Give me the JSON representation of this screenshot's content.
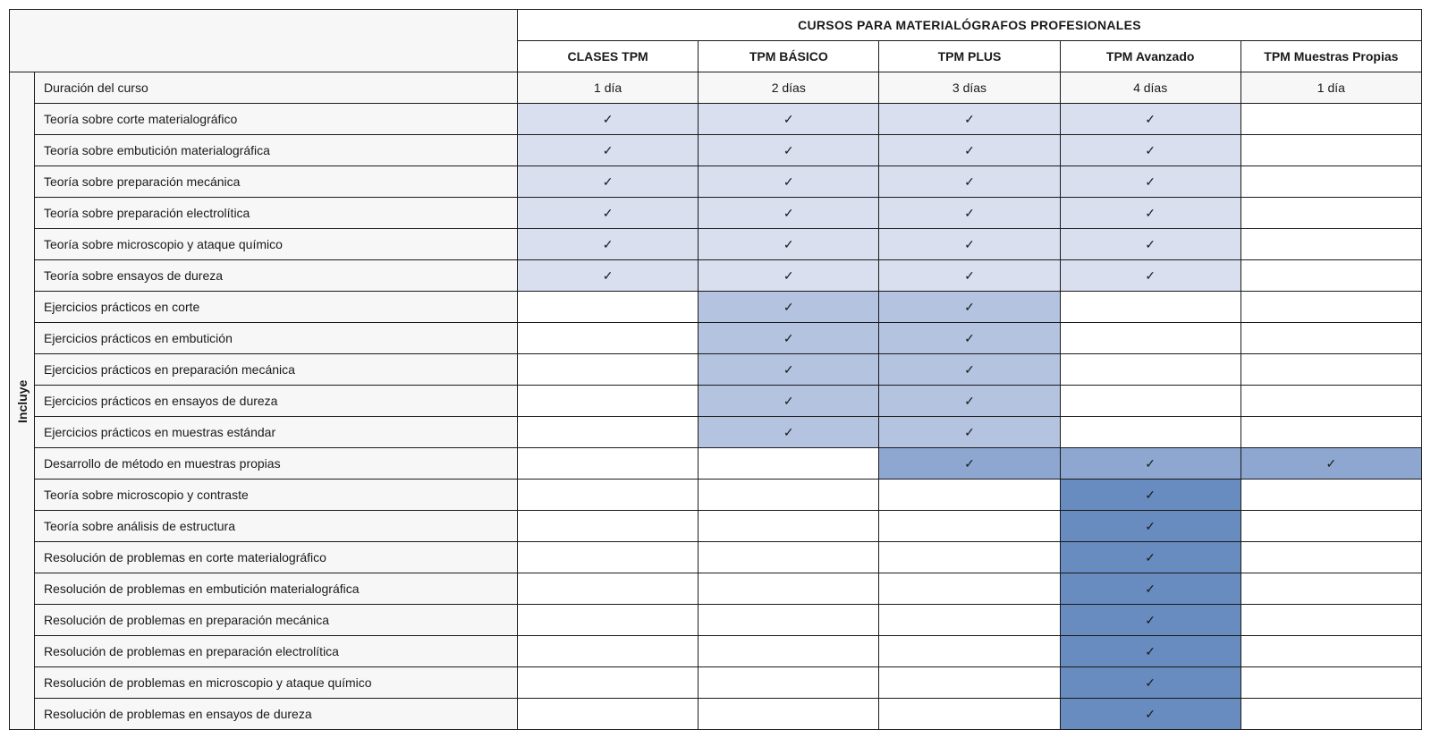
{
  "table": {
    "mainHeader": "CURSOS PARA MATERIALÓGRAFOS PROFESIONALES",
    "sideLabel": "Incluye",
    "checkmark": "✓",
    "colors": {
      "shade1": "#dadff0",
      "shade2": "#b4c3e0",
      "shade3": "#8ea7d0",
      "shade4": "#688bc0",
      "rowAlt": "#f7f7f7"
    },
    "courses": [
      {
        "name": "CLASES TPM",
        "duration": "1 día"
      },
      {
        "name": "TPM BÁSICO",
        "duration": "2 días"
      },
      {
        "name": "TPM PLUS",
        "duration": "3 días"
      },
      {
        "name": "TPM Avanzado",
        "duration": "4 días"
      },
      {
        "name": "TPM Muestras Propias",
        "duration": "1 día"
      }
    ],
    "durationLabel": "Duración del curso",
    "features": [
      {
        "label": "Teoría sobre corte materialográfico",
        "cells": [
          "1",
          "1",
          "1",
          "1",
          ""
        ]
      },
      {
        "label": "Teoría sobre embutición materialográfica",
        "cells": [
          "1",
          "1",
          "1",
          "1",
          ""
        ]
      },
      {
        "label": "Teoría sobre preparación mecánica",
        "cells": [
          "1",
          "1",
          "1",
          "1",
          ""
        ]
      },
      {
        "label": "Teoría sobre preparación electrolítica",
        "cells": [
          "1",
          "1",
          "1",
          "1",
          ""
        ]
      },
      {
        "label": "Teoría sobre microscopio y ataque químico",
        "cells": [
          "1",
          "1",
          "1",
          "1",
          ""
        ]
      },
      {
        "label": "Teoría sobre ensayos de dureza",
        "cells": [
          "1",
          "1",
          "1",
          "1",
          ""
        ]
      },
      {
        "label": "Ejercicios prácticos en corte",
        "cells": [
          "",
          "2",
          "2",
          "",
          ""
        ]
      },
      {
        "label": "Ejercicios prácticos en embutición",
        "cells": [
          "",
          "2",
          "2",
          "",
          ""
        ]
      },
      {
        "label": "Ejercicios prácticos en preparación mecánica",
        "cells": [
          "",
          "2",
          "2",
          "",
          ""
        ]
      },
      {
        "label": "Ejercicios prácticos en ensayos de dureza",
        "cells": [
          "",
          "2",
          "2",
          "",
          ""
        ]
      },
      {
        "label": "Ejercicios prácticos en muestras estándar",
        "cells": [
          "",
          "2",
          "2",
          "",
          ""
        ]
      },
      {
        "label": "Desarrollo de método en muestras propias",
        "cells": [
          "",
          "",
          "3",
          "3",
          "3"
        ]
      },
      {
        "label": "Teoría sobre microscopio y contraste",
        "cells": [
          "",
          "",
          "",
          "4",
          ""
        ]
      },
      {
        "label": "Teoría sobre análisis de estructura",
        "cells": [
          "",
          "",
          "",
          "4",
          ""
        ]
      },
      {
        "label": "Resolución de problemas en corte materialográfico",
        "cells": [
          "",
          "",
          "",
          "4",
          ""
        ]
      },
      {
        "label": "Resolución de problemas en embutición materialográfica",
        "cells": [
          "",
          "",
          "",
          "4",
          ""
        ]
      },
      {
        "label": "Resolución de problemas en preparación mecánica",
        "cells": [
          "",
          "",
          "",
          "4",
          ""
        ]
      },
      {
        "label": "Resolución de problemas en preparación electrolítica",
        "cells": [
          "",
          "",
          "",
          "4",
          ""
        ]
      },
      {
        "label": "Resolución de problemas en microscopio y ataque químico",
        "cells": [
          "",
          "",
          "",
          "4",
          ""
        ]
      },
      {
        "label": "Resolución de problemas en ensayos de dureza",
        "cells": [
          "",
          "",
          "",
          "4",
          ""
        ]
      }
    ]
  }
}
